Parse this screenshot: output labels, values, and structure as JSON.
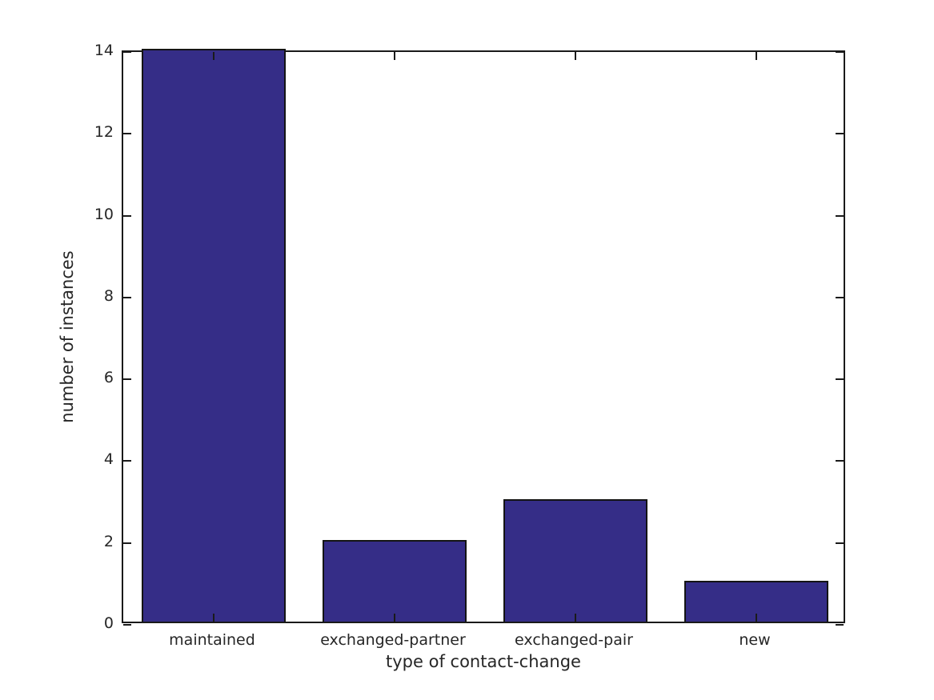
{
  "chart_data": {
    "type": "bar",
    "categories": [
      "maintained",
      "exchanged-partner",
      "exchanged-pair",
      "new"
    ],
    "values": [
      14,
      2,
      3,
      1
    ],
    "xlabel": "type of contact-change",
    "ylabel": "number of instances",
    "ylim": [
      0,
      14
    ],
    "yticks": [
      0,
      2,
      4,
      6,
      8,
      10,
      12,
      14
    ],
    "xlim": [
      0.5,
      4.5
    ],
    "bar_width_ratio": 0.8,
    "bar_color": "#352D87",
    "bar_edge_color": "#141414",
    "axis_color": "#1a1a1a",
    "text_color": "#262626",
    "grid": false,
    "legend": "none"
  }
}
